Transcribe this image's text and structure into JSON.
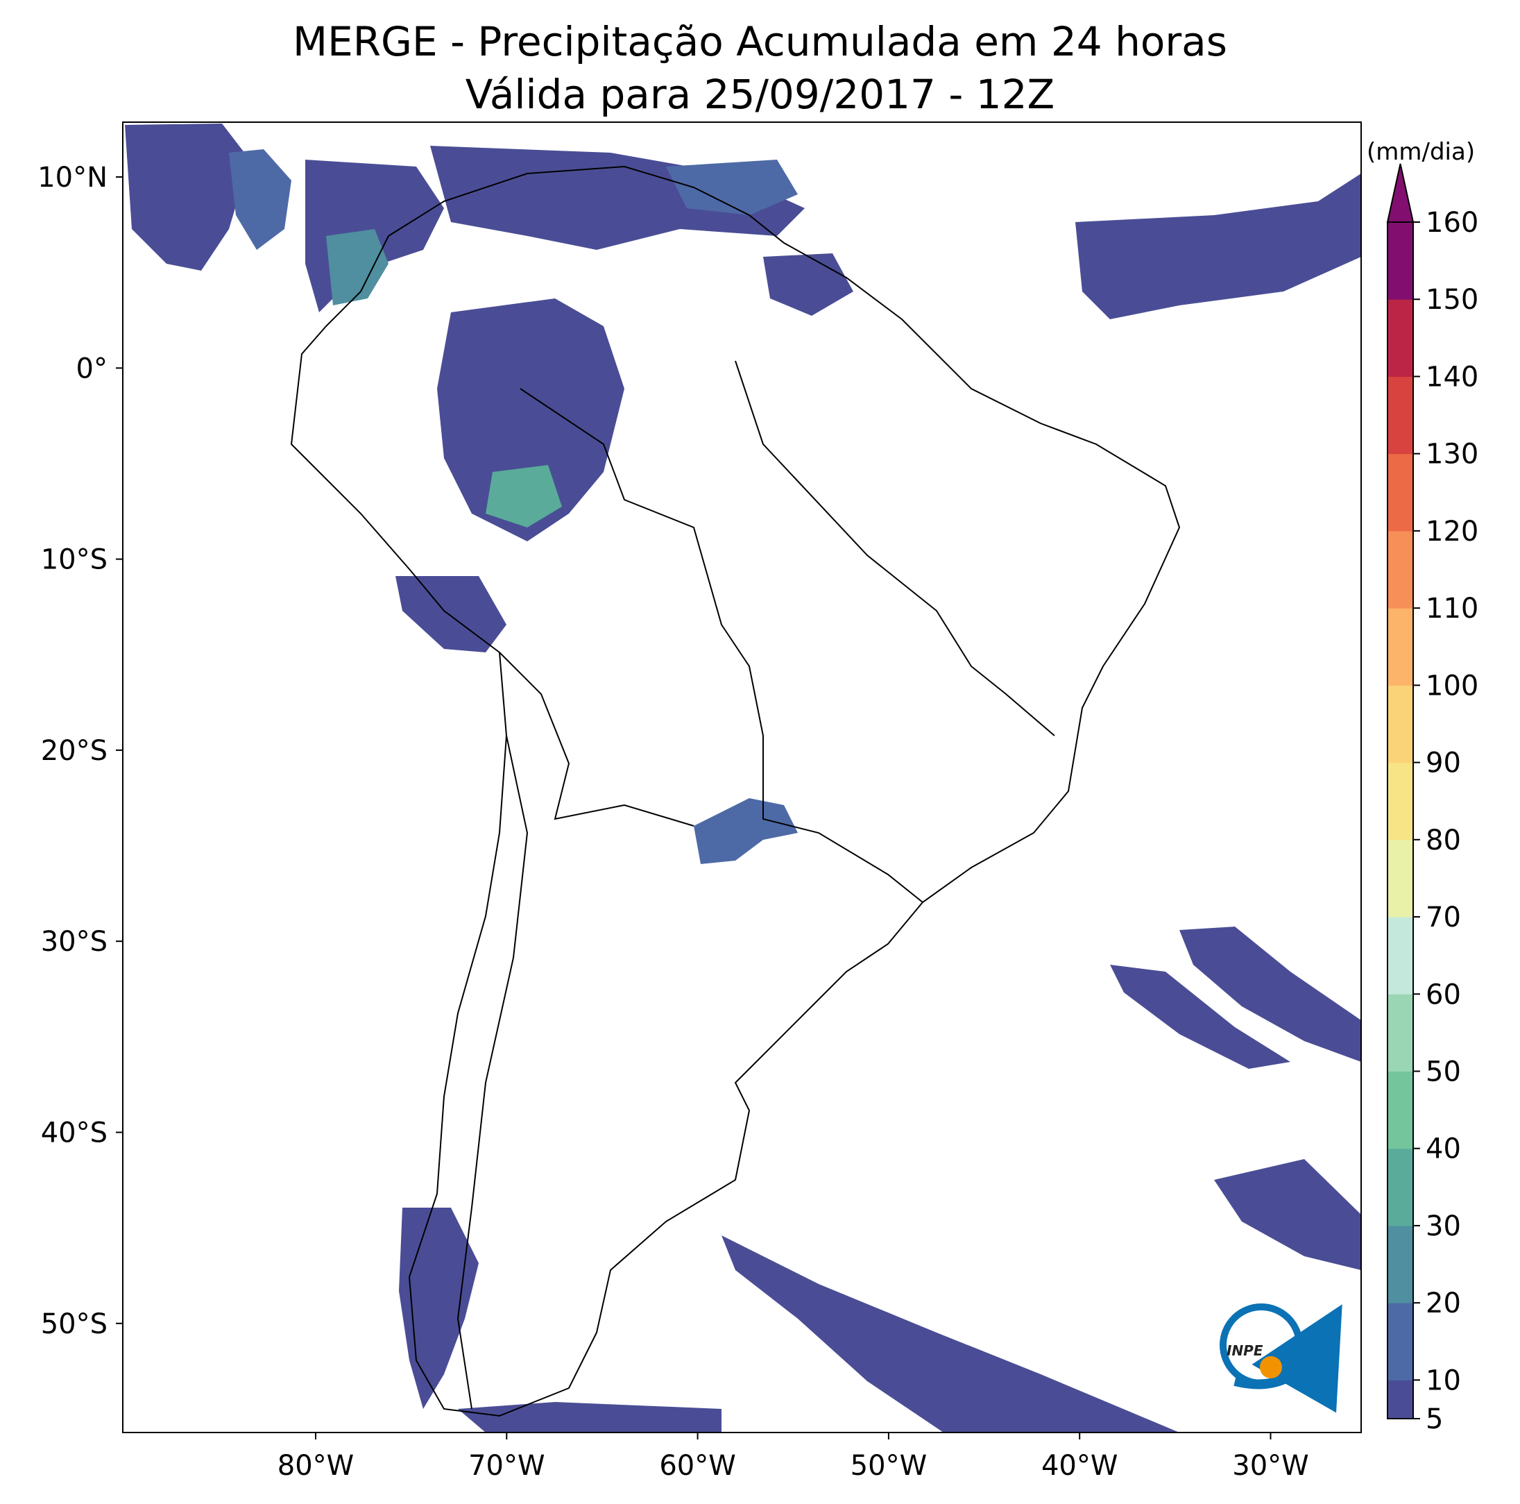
{
  "title": {
    "line1": "MERGE - Precipitação Acumulada em 24 horas",
    "line2": "Válida para 25/09/2017 - 12Z"
  },
  "axes": {
    "lat_ticks": [
      "10°N",
      "0°",
      "10°S",
      "20°S",
      "30°S",
      "40°S",
      "50°S"
    ],
    "lon_ticks": [
      "80°W",
      "70°W",
      "60°W",
      "50°W",
      "40°W",
      "30°W"
    ]
  },
  "colorbar": {
    "unit": "(mm/dia)",
    "tick_labels": [
      "5",
      "10",
      "20",
      "30",
      "40",
      "50",
      "60",
      "70",
      "80",
      "90",
      "100",
      "110",
      "120",
      "130",
      "140",
      "150",
      "160"
    ],
    "colors": [
      "#4a4d95",
      "#4e6aa6",
      "#4f8fa0",
      "#5aab9a",
      "#74c59b",
      "#9ad6b4",
      "#c5e8dc",
      "#e9f0a8",
      "#f6e486",
      "#fad378",
      "#fbb46a",
      "#f78f58",
      "#ec6a45",
      "#d8433f",
      "#bc2545",
      "#820f70"
    ]
  },
  "logo": {
    "text": "INPE",
    "colors": {
      "ring": "#0b72b5",
      "sun": "#f39200"
    }
  }
}
